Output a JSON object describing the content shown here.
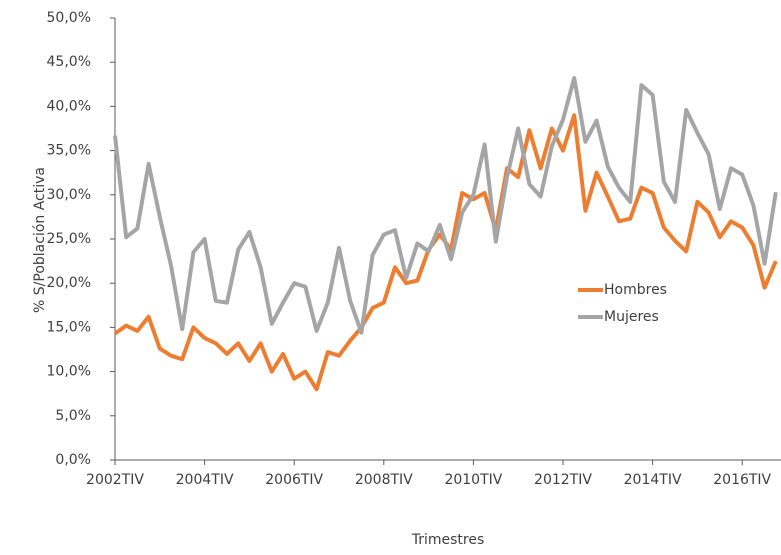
{
  "chart_data": {
    "type": "line",
    "x_label": "Trimestres",
    "y_label": "% S/Población Activa",
    "categories": [
      "2002TIV",
      null,
      null,
      null,
      null,
      null,
      null,
      null,
      "2004TIV",
      null,
      null,
      null,
      null,
      null,
      null,
      null,
      "2006TIV",
      null,
      null,
      null,
      null,
      null,
      null,
      null,
      "2008TIV",
      null,
      null,
      null,
      null,
      null,
      null,
      null,
      "2010TIV",
      null,
      null,
      null,
      null,
      null,
      null,
      null,
      "2012TIV",
      null,
      null,
      null,
      null,
      null,
      null,
      null,
      "2014TIV",
      null,
      null,
      null,
      null,
      null,
      null,
      null,
      "2016TIV",
      null,
      null,
      null
    ],
    "series": [
      {
        "name": "Hombres",
        "color": "#ed7d31",
        "values": [
          14.3,
          15.2,
          14.6,
          16.2,
          12.6,
          11.8,
          11.4,
          15.0,
          13.8,
          13.2,
          12.0,
          13.2,
          11.2,
          13.2,
          10.0,
          12.0,
          9.2,
          10.0,
          8.0,
          12.2,
          11.8,
          13.5,
          15.0,
          17.2,
          17.8,
          21.8,
          20.0,
          20.3,
          23.8,
          25.5,
          23.8,
          30.2,
          29.5,
          30.2,
          26.0,
          33.0,
          32.0,
          37.3,
          33.0,
          37.5,
          35.0,
          39.0,
          28.2,
          32.5,
          29.8,
          27.0,
          27.3,
          30.8,
          30.2,
          26.3,
          24.8,
          23.6,
          29.2,
          28.0,
          25.2,
          27.0,
          26.3,
          24.3,
          19.5,
          22.5
        ]
      },
      {
        "name": "Mujeres",
        "color": "#a5a5a5",
        "values": [
          36.7,
          25.2,
          26.2,
          33.5,
          27.5,
          22.0,
          14.8,
          23.5,
          25.0,
          18.0,
          17.8,
          23.8,
          25.8,
          21.8,
          15.4,
          17.8,
          20.0,
          19.6,
          14.6,
          17.8,
          24.0,
          18.0,
          14.4,
          23.2,
          25.5,
          26.0,
          20.6,
          24.5,
          23.6,
          26.6,
          22.7,
          28.0,
          30.0,
          35.7,
          24.7,
          32.0,
          37.5,
          31.2,
          29.8,
          35.5,
          38.5,
          43.2,
          36.0,
          38.4,
          33.2,
          30.8,
          29.2,
          42.4,
          41.3,
          31.5,
          29.2,
          39.6,
          37.0,
          34.6,
          28.4,
          33.0,
          32.3,
          28.8,
          22.2,
          30.3
        ]
      }
    ],
    "ylim": [
      0,
      50
    ],
    "yticks": [
      {
        "value": 0,
        "label": "0,0%"
      },
      {
        "value": 5,
        "label": "5,0%"
      },
      {
        "value": 10,
        "label": "10,0%"
      },
      {
        "value": 15,
        "label": "15,0%"
      },
      {
        "value": 20,
        "label": "20,0%"
      },
      {
        "value": 25,
        "label": "25,0%"
      },
      {
        "value": 30,
        "label": "30,0%"
      },
      {
        "value": 35,
        "label": "35,0%"
      },
      {
        "value": 40,
        "label": "40,0%"
      },
      {
        "value": 45,
        "label": "45,0%"
      },
      {
        "value": 50,
        "label": "50,0%"
      }
    ],
    "grid": false
  }
}
